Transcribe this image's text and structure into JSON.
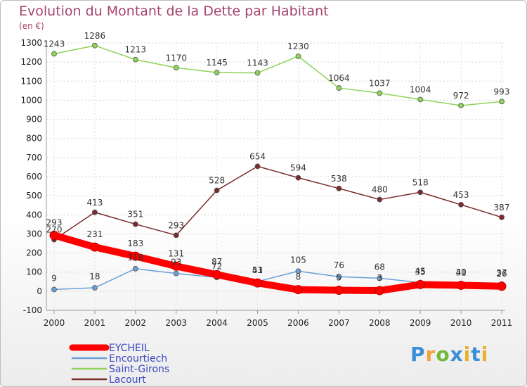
{
  "chart_data": {
    "type": "line",
    "title": "Evolution du Montant de la Dette par Habitant",
    "subtitle": "(en €)",
    "x": [
      "2000",
      "2001",
      "2002",
      "2003",
      "2004",
      "2005",
      "2006",
      "2007",
      "2008",
      "2009",
      "2010",
      "2011"
    ],
    "ylim": [
      -100,
      1300
    ],
    "yticks": [
      -100,
      0,
      100,
      200,
      300,
      400,
      500,
      600,
      700,
      800,
      900,
      1000,
      1100,
      1200,
      1300
    ],
    "grid": true,
    "legend_position": "bottom-left",
    "series": [
      {
        "name": "EYCHEIL",
        "color": "#ff0000",
        "values": [
          293,
          231,
          183,
          131,
          87,
          43,
          8,
          5,
          3,
          35,
          31,
          26
        ]
      },
      {
        "name": "Encourtiech",
        "color": "#6a9fd8",
        "values": [
          9,
          18,
          118,
          93,
          72,
          51,
          105,
          76,
          68,
          45,
          40,
          37
        ]
      },
      {
        "name": "Saint-Girons",
        "color": "#8fd45a",
        "values": [
          1243,
          1286,
          1213,
          1170,
          1145,
          1143,
          1230,
          1064,
          1037,
          1004,
          972,
          993
        ]
      },
      {
        "name": "Lacourt",
        "color": "#7a2b2b",
        "values": [
          270,
          413,
          351,
          293,
          528,
          654,
          594,
          538,
          480,
          518,
          453,
          387
        ]
      }
    ],
    "data_labels": [
      {
        "series": "EYCHEIL",
        "labels": [
          "293",
          "231",
          "183",
          "131",
          "87",
          "43",
          "8",
          "5",
          "3",
          "35",
          "31",
          "26"
        ]
      },
      {
        "series": "Encourtiech",
        "labels": [
          "9",
          "18",
          "118",
          "93",
          "72",
          "51",
          "105",
          "76",
          "68",
          "45",
          "40",
          "37"
        ]
      },
      {
        "series": "Saint-Girons",
        "labels": [
          "1243",
          "1286",
          "1213",
          "1170",
          "1145",
          "1143",
          "1230",
          "1064",
          "1037",
          "1004",
          "972",
          "993"
        ]
      },
      {
        "series": "Lacourt",
        "labels": [
          "270",
          "413",
          "351",
          "293",
          "528",
          "654",
          "594",
          "538",
          "480",
          "518",
          "453",
          "387"
        ]
      }
    ]
  },
  "brand": {
    "text": "Proxiti"
  }
}
